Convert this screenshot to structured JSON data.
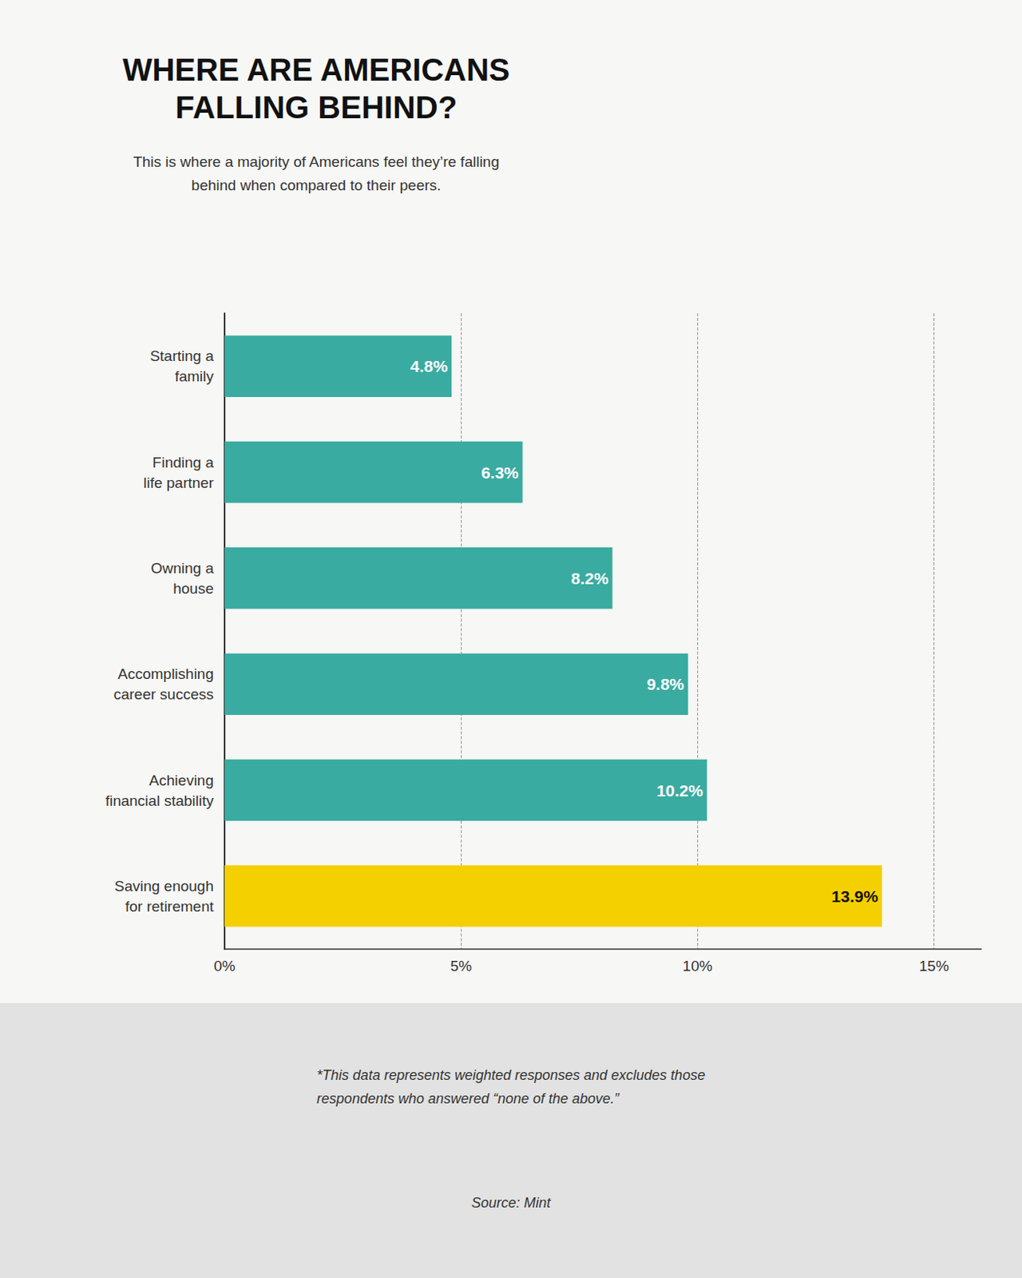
{
  "chart_data": {
    "type": "bar",
    "orientation": "horizontal",
    "title": "WHERE ARE AMERICANS\nFALLING BEHIND?",
    "subtitle": "This is where a majority of Americans feel they’re falling\nbehind when compared to their peers.",
    "categories": [
      "Saving enough\nfor retirement",
      "Achieving\nfinancial stability",
      "Accomplishing\ncareer success",
      "Owning a\nhouse",
      "Finding a\nlife partner",
      "Starting a\nfamily"
    ],
    "values": [
      13.9,
      10.2,
      9.8,
      8.2,
      6.3,
      4.8
    ],
    "value_labels": [
      "13.9%",
      "10.2%",
      "9.8%",
      "8.2%",
      "6.3%",
      "4.8%"
    ],
    "data_labels": true,
    "colors": [
      "#f5d000",
      "#3aaba0",
      "#3aaba0",
      "#3aaba0",
      "#3aaba0",
      "#3aaba0"
    ],
    "xlim": [
      0,
      16
    ],
    "xticks": [
      {
        "value": 0,
        "label": "0%"
      },
      {
        "value": 5,
        "label": "5%"
      },
      {
        "value": 10,
        "label": "10%"
      },
      {
        "value": 15,
        "label": "15%"
      }
    ],
    "grid": true,
    "annotations": [
      "*This data represents weighted responses and excludes those\nrespondents who answered “none of the above.”",
      "Source: Mint"
    ]
  }
}
